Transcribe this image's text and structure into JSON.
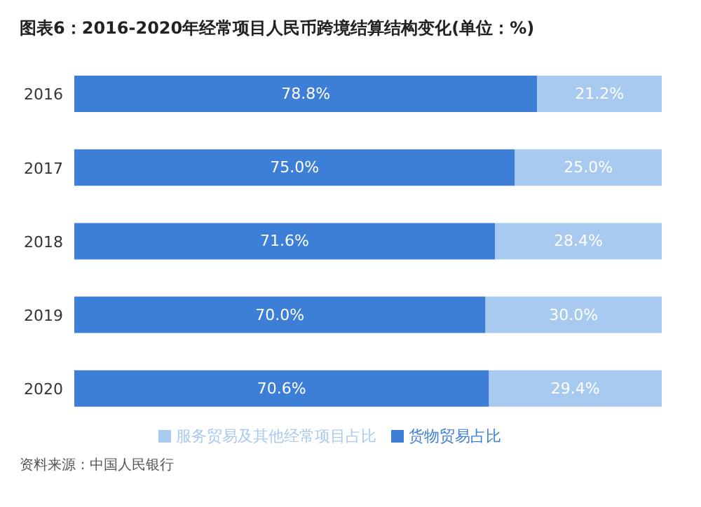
{
  "chart_data": {
    "type": "bar",
    "orientation": "horizontal",
    "stacked": true,
    "title": "图表6：2016-2020年经常项目人民币跨境结算结构变化(单位：%)",
    "categories": [
      "2016",
      "2017",
      "2018",
      "2019",
      "2020"
    ],
    "series": [
      {
        "name": "货物贸易占比",
        "color": "#3d7fd6",
        "values": [
          78.8,
          75.0,
          71.6,
          70.0,
          70.6
        ],
        "value_labels": [
          "78.8%",
          "75.0%",
          "71.6%",
          "70.0%",
          "70.6%"
        ]
      },
      {
        "name": "服务贸易及其他经常项目占比",
        "color": "#a8c9f0",
        "values": [
          21.2,
          25.0,
          28.4,
          30.0,
          29.4
        ],
        "value_labels": [
          "21.2%",
          "25.0%",
          "28.4%",
          "30.0%",
          "29.4%"
        ]
      }
    ],
    "legend": "bottom",
    "grid": false,
    "annotations": [
      "资料来源：中国人民银行"
    ]
  }
}
